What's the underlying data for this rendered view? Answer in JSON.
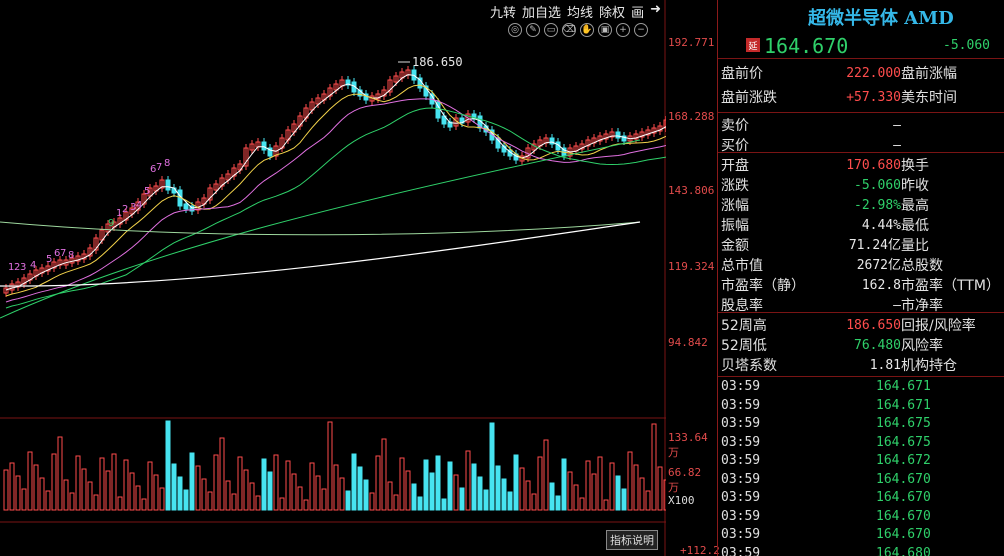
{
  "toolbar": {
    "items": [
      "九转",
      "加自选",
      "均线",
      "除权",
      "画"
    ]
  },
  "yaxis": {
    "price_labels": [
      "192.771",
      "168.288",
      "143.806",
      "119.324",
      "94.842"
    ],
    "volume_labels": [
      "133.64万",
      "66.82万",
      "X100"
    ],
    "bottom_label": "+112.2"
  },
  "annotations": {
    "high_label": "186.650",
    "indicator_button": "指标说明",
    "td_counts": [
      "1",
      "2",
      "3",
      "4",
      "5",
      "6",
      "7",
      "8",
      "9"
    ]
  },
  "colors": {
    "up": "#ff4d4d",
    "down": "#47e3f0",
    "green": "#2fd06a",
    "accent": "#35b8e8",
    "border": "#8b1a1a"
  },
  "header": {
    "title": "超微半导体 AMD",
    "delay_badge": "延",
    "price": "164.670",
    "change": "-5.060"
  },
  "quote": [
    {
      "label": "盘前价",
      "value": "222.000",
      "label2": "盘前涨幅",
      "color": "red"
    },
    {
      "label": "盘前涨跌",
      "value": "+57.330",
      "label2": "美东时间",
      "color": "red"
    },
    {
      "label": "卖价",
      "value": "–",
      "label2": "",
      "color": "white"
    },
    {
      "label": "买价",
      "value": "–",
      "label2": "",
      "color": "white"
    },
    {
      "label": "开盘",
      "value": "170.680",
      "label2": "换手",
      "color": "red"
    },
    {
      "label": "涨跌",
      "value": "-5.060",
      "label2": "昨收",
      "color": "green"
    },
    {
      "label": "涨幅",
      "value": "-2.98%",
      "label2": "最高",
      "color": "green"
    },
    {
      "label": "振幅",
      "value": "4.44%",
      "label2": "最低",
      "color": "white"
    },
    {
      "label": "金额",
      "value": "71.24亿",
      "label2": "量比",
      "color": "white"
    },
    {
      "label": "总市值",
      "value": "2672亿",
      "label2": "总股数",
      "color": "white"
    },
    {
      "label": "市盈率（静）",
      "value": "162.8",
      "label2": "市盈率（TTM）",
      "color": "white"
    },
    {
      "label": "股息率",
      "value": "–",
      "label2": "市净率",
      "color": "white"
    },
    {
      "label": "52周高",
      "value": "186.650",
      "label2": "回报/风险率",
      "color": "red"
    },
    {
      "label": "52周低",
      "value": "76.480",
      "label2": "风险率",
      "color": "green"
    },
    {
      "label": "贝塔系数",
      "value": "1.81",
      "label2": "机构持仓",
      "color": "white"
    }
  ],
  "ticks": [
    {
      "time": "03:59",
      "price": "164.671"
    },
    {
      "time": "03:59",
      "price": "164.671"
    },
    {
      "time": "03:59",
      "price": "164.675"
    },
    {
      "time": "03:59",
      "price": "164.675"
    },
    {
      "time": "03:59",
      "price": "164.672"
    },
    {
      "time": "03:59",
      "price": "164.670"
    },
    {
      "time": "03:59",
      "price": "164.670"
    },
    {
      "time": "03:59",
      "price": "164.670"
    },
    {
      "time": "03:59",
      "price": "164.670"
    },
    {
      "time": "03:59",
      "price": "164.680"
    }
  ]
}
